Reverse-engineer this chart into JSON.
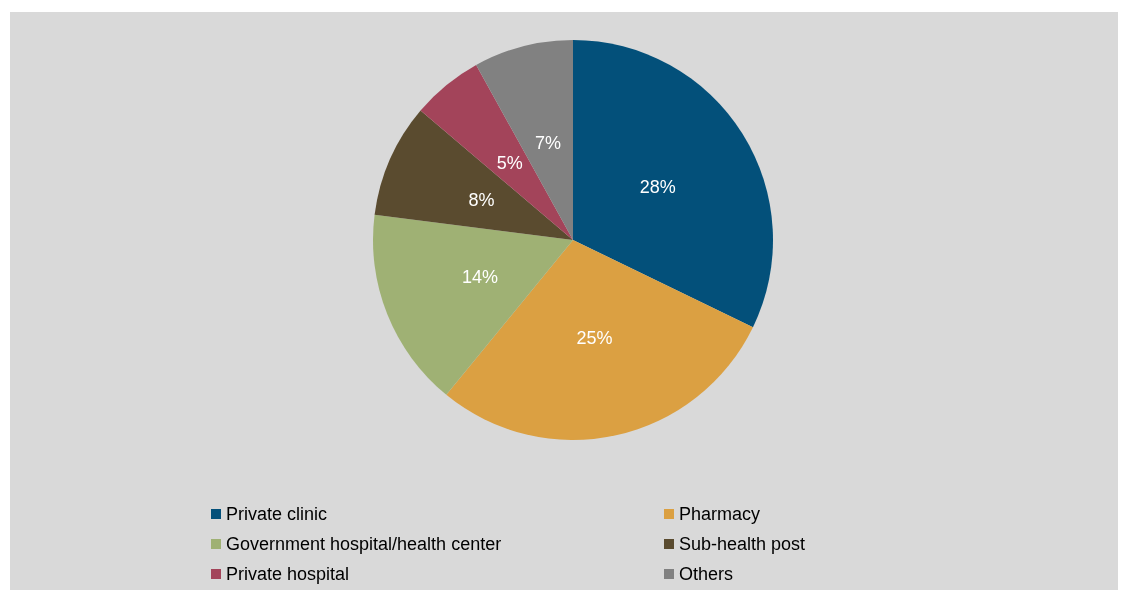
{
  "chart_data": {
    "type": "pie",
    "categories": [
      "Private clinic",
      "Pharmacy",
      "Government hospital/health center",
      "Sub-health post",
      "Private hospital",
      "Others"
    ],
    "values": [
      28,
      25,
      14,
      8,
      5,
      7
    ],
    "value_labels": [
      "28%",
      "25%",
      "14%",
      "8%",
      "5%",
      "7%"
    ],
    "colors": [
      "#03507a",
      "#dba042",
      "#9fb174",
      "#5a4b2f",
      "#a3445a",
      "#818181"
    ],
    "legend": "bottom"
  }
}
